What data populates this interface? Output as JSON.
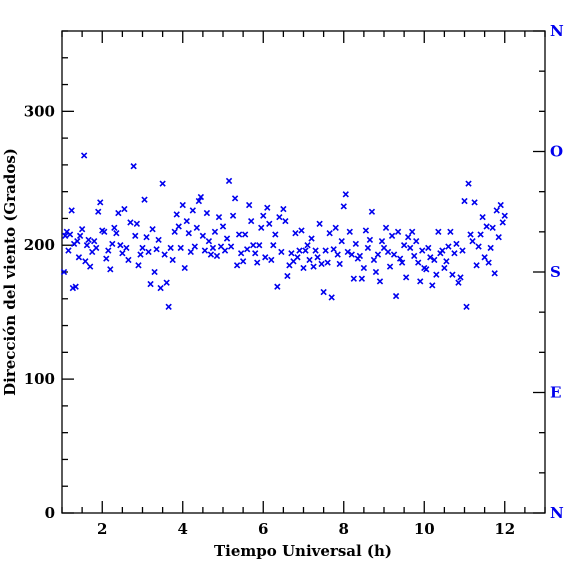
{
  "chart_data": {
    "type": "scatter",
    "title": "",
    "xlabel": "Tiempo Universal (h)",
    "ylabel": "Dirección del viento (Grados)",
    "xlim": [
      1.0,
      13.0
    ],
    "ylim": [
      0,
      360
    ],
    "x_ticks": [
      2,
      4,
      6,
      8,
      10,
      12
    ],
    "x_tick_labels": [
      "2",
      "4",
      "6",
      "8",
      "10",
      "12"
    ],
    "y_ticks": [
      0,
      100,
      200,
      300
    ],
    "y_tick_labels": [
      "0",
      "100",
      "200",
      "300"
    ],
    "right_axis": {
      "ticks": [
        0,
        90,
        180,
        270,
        360
      ],
      "labels": [
        "N",
        "E",
        "S",
        "O",
        "N"
      ],
      "color": "#0000ee"
    },
    "grid": false,
    "marker": "x",
    "marker_color": "#0000ee",
    "axis_color": "#000000",
    "series": [
      {
        "points": [
          [
            1.05,
            180
          ],
          [
            1.08,
            207
          ],
          [
            1.12,
            210
          ],
          [
            1.16,
            196
          ],
          [
            1.2,
            208
          ],
          [
            1.24,
            226
          ],
          [
            1.27,
            168
          ],
          [
            1.3,
            201
          ],
          [
            1.34,
            169
          ],
          [
            1.38,
            203
          ],
          [
            1.42,
            191
          ],
          [
            1.45,
            207
          ],
          [
            1.5,
            212
          ],
          [
            1.55,
            267
          ],
          [
            1.58,
            188
          ],
          [
            1.62,
            200
          ],
          [
            1.66,
            204
          ],
          [
            1.7,
            184
          ],
          [
            1.75,
            195
          ],
          [
            1.8,
            203
          ],
          [
            1.85,
            198
          ],
          [
            1.9,
            225
          ],
          [
            1.95,
            232
          ],
          [
            2.0,
            211
          ],
          [
            2.05,
            210
          ],
          [
            2.1,
            190
          ],
          [
            2.15,
            196
          ],
          [
            2.2,
            182
          ],
          [
            2.25,
            201
          ],
          [
            2.3,
            213
          ],
          [
            2.35,
            209
          ],
          [
            2.4,
            224
          ],
          [
            2.45,
            200
          ],
          [
            2.5,
            194
          ],
          [
            2.55,
            227
          ],
          [
            2.6,
            198
          ],
          [
            2.65,
            189
          ],
          [
            2.7,
            217
          ],
          [
            2.78,
            259
          ],
          [
            2.82,
            207
          ],
          [
            2.86,
            216
          ],
          [
            2.9,
            185
          ],
          [
            2.95,
            193
          ],
          [
            3.0,
            198
          ],
          [
            3.05,
            234
          ],
          [
            3.1,
            206
          ],
          [
            3.15,
            195
          ],
          [
            3.2,
            171
          ],
          [
            3.25,
            212
          ],
          [
            3.3,
            180
          ],
          [
            3.35,
            197
          ],
          [
            3.4,
            204
          ],
          [
            3.45,
            168
          ],
          [
            3.5,
            246
          ],
          [
            3.55,
            193
          ],
          [
            3.6,
            172
          ],
          [
            3.65,
            154
          ],
          [
            3.7,
            198
          ],
          [
            3.75,
            189
          ],
          [
            3.8,
            210
          ],
          [
            3.85,
            223
          ],
          [
            3.9,
            214
          ],
          [
            3.95,
            198
          ],
          [
            4.0,
            230
          ],
          [
            4.05,
            183
          ],
          [
            4.1,
            218
          ],
          [
            4.15,
            209
          ],
          [
            4.2,
            195
          ],
          [
            4.25,
            226
          ],
          [
            4.3,
            199
          ],
          [
            4.35,
            213
          ],
          [
            4.4,
            233
          ],
          [
            4.45,
            236
          ],
          [
            4.5,
            207
          ],
          [
            4.55,
            196
          ],
          [
            4.6,
            224
          ],
          [
            4.65,
            203
          ],
          [
            4.7,
            193
          ],
          [
            4.75,
            198
          ],
          [
            4.8,
            210
          ],
          [
            4.85,
            192
          ],
          [
            4.9,
            221
          ],
          [
            4.95,
            199
          ],
          [
            5.0,
            214
          ],
          [
            5.05,
            196
          ],
          [
            5.1,
            205
          ],
          [
            5.15,
            248
          ],
          [
            5.2,
            199
          ],
          [
            5.25,
            222
          ],
          [
            5.3,
            235
          ],
          [
            5.35,
            185
          ],
          [
            5.4,
            208
          ],
          [
            5.45,
            194
          ],
          [
            5.5,
            188
          ],
          [
            5.55,
            208
          ],
          [
            5.6,
            197
          ],
          [
            5.65,
            230
          ],
          [
            5.7,
            218
          ],
          [
            5.75,
            200
          ],
          [
            5.8,
            194
          ],
          [
            5.85,
            187
          ],
          [
            5.9,
            200
          ],
          [
            5.95,
            213
          ],
          [
            6.0,
            222
          ],
          [
            6.05,
            191
          ],
          [
            6.1,
            228
          ],
          [
            6.15,
            216
          ],
          [
            6.2,
            189
          ],
          [
            6.25,
            200
          ],
          [
            6.3,
            208
          ],
          [
            6.35,
            169
          ],
          [
            6.4,
            221
          ],
          [
            6.45,
            195
          ],
          [
            6.5,
            227
          ],
          [
            6.55,
            218
          ],
          [
            6.6,
            177
          ],
          [
            6.65,
            185
          ],
          [
            6.7,
            194
          ],
          [
            6.75,
            188
          ],
          [
            6.8,
            209
          ],
          [
            6.85,
            191
          ],
          [
            6.9,
            196
          ],
          [
            6.95,
            211
          ],
          [
            7.0,
            183
          ],
          [
            7.05,
            196
          ],
          [
            7.1,
            200
          ],
          [
            7.15,
            189
          ],
          [
            7.2,
            205
          ],
          [
            7.25,
            184
          ],
          [
            7.3,
            196
          ],
          [
            7.35,
            191
          ],
          [
            7.4,
            216
          ],
          [
            7.45,
            186
          ],
          [
            7.5,
            165
          ],
          [
            7.55,
            196
          ],
          [
            7.6,
            187
          ],
          [
            7.65,
            209
          ],
          [
            7.7,
            161
          ],
          [
            7.75,
            197
          ],
          [
            7.8,
            213
          ],
          [
            7.85,
            193
          ],
          [
            7.9,
            186
          ],
          [
            7.95,
            203
          ],
          [
            8.0,
            229
          ],
          [
            8.05,
            238
          ],
          [
            8.1,
            195
          ],
          [
            8.15,
            210
          ],
          [
            8.2,
            193
          ],
          [
            8.25,
            175
          ],
          [
            8.3,
            201
          ],
          [
            8.35,
            190
          ],
          [
            8.4,
            192
          ],
          [
            8.45,
            175
          ],
          [
            8.5,
            183
          ],
          [
            8.55,
            211
          ],
          [
            8.6,
            198
          ],
          [
            8.65,
            204
          ],
          [
            8.7,
            225
          ],
          [
            8.75,
            189
          ],
          [
            8.8,
            180
          ],
          [
            8.85,
            193
          ],
          [
            8.9,
            173
          ],
          [
            8.95,
            203
          ],
          [
            9.0,
            198
          ],
          [
            9.05,
            213
          ],
          [
            9.1,
            195
          ],
          [
            9.15,
            184
          ],
          [
            9.2,
            207
          ],
          [
            9.25,
            193
          ],
          [
            9.3,
            162
          ],
          [
            9.35,
            210
          ],
          [
            9.4,
            190
          ],
          [
            9.45,
            187
          ],
          [
            9.5,
            200
          ],
          [
            9.55,
            176
          ],
          [
            9.6,
            206
          ],
          [
            9.65,
            198
          ],
          [
            9.7,
            210
          ],
          [
            9.75,
            192
          ],
          [
            9.8,
            203
          ],
          [
            9.85,
            187
          ],
          [
            9.9,
            173
          ],
          [
            9.95,
            196
          ],
          [
            10.0,
            183
          ],
          [
            10.05,
            182
          ],
          [
            10.1,
            198
          ],
          [
            10.15,
            191
          ],
          [
            10.2,
            170
          ],
          [
            10.25,
            189
          ],
          [
            10.3,
            178
          ],
          [
            10.35,
            210
          ],
          [
            10.4,
            194
          ],
          [
            10.45,
            196
          ],
          [
            10.5,
            183
          ],
          [
            10.55,
            188
          ],
          [
            10.6,
            199
          ],
          [
            10.65,
            210
          ],
          [
            10.7,
            178
          ],
          [
            10.75,
            194
          ],
          [
            10.8,
            201
          ],
          [
            10.85,
            172
          ],
          [
            10.9,
            176
          ],
          [
            10.95,
            196
          ],
          [
            11.0,
            233
          ],
          [
            11.05,
            154
          ],
          [
            11.1,
            246
          ],
          [
            11.15,
            208
          ],
          [
            11.2,
            203
          ],
          [
            11.25,
            232
          ],
          [
            11.3,
            185
          ],
          [
            11.35,
            199
          ],
          [
            11.4,
            208
          ],
          [
            11.45,
            221
          ],
          [
            11.5,
            191
          ],
          [
            11.55,
            214
          ],
          [
            11.6,
            187
          ],
          [
            11.65,
            198
          ],
          [
            11.7,
            213
          ],
          [
            11.75,
            179
          ],
          [
            11.8,
            226
          ],
          [
            11.85,
            206
          ],
          [
            11.9,
            230
          ],
          [
            11.95,
            217
          ],
          [
            12.0,
            222
          ]
        ]
      }
    ]
  }
}
